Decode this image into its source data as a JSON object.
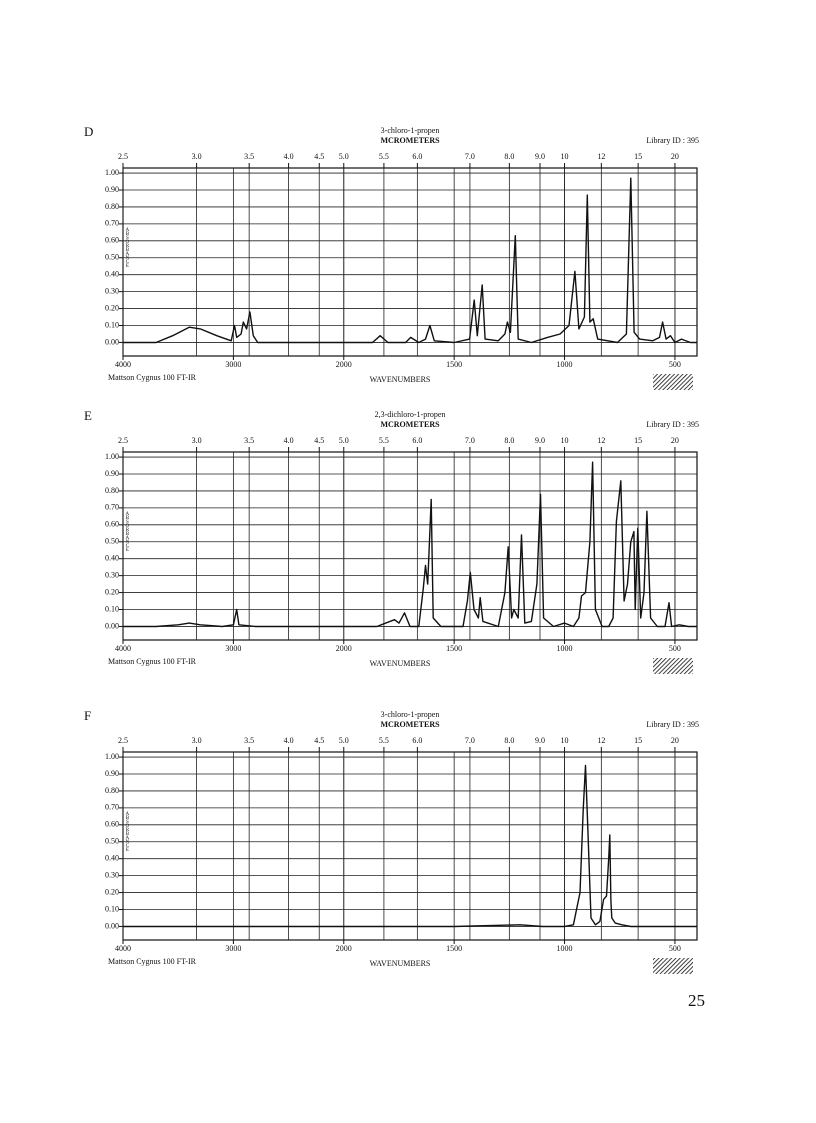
{
  "page_number": "25",
  "chart_data": [
    {
      "type": "line",
      "label": "D",
      "title": "3-chloro-1-propen",
      "x2_label": "MCROMETERS",
      "library_id": "Library ID : 395",
      "instrument": "Mattson Cygnus 100 FT-IR",
      "x_label": "WAVENUMBERS",
      "y_label": "ABSORBANCE",
      "color": "#111111",
      "xscale": "tick-interpolated",
      "grid": true,
      "xlim": [
        4000,
        400
      ],
      "xticks": [
        4000,
        3000,
        2000,
        1500,
        1000,
        500
      ],
      "x2lim": [
        2.5,
        25
      ],
      "x2ticks": [
        2.5,
        {
          "value": 3,
          "label": "3.0"
        },
        3.5,
        {
          "value": 4,
          "label": "4.0"
        },
        4.5,
        {
          "value": 5,
          "label": "5.0"
        },
        5.5,
        {
          "value": 6,
          "label": "6.0"
        },
        {
          "value": 7,
          "label": "7.0"
        },
        {
          "value": 8,
          "label": "8.0"
        },
        {
          "value": 9,
          "label": "9.0"
        },
        10,
        12,
        15,
        20
      ],
      "ylim": [
        -0.08,
        1.03
      ],
      "yticks": [
        {
          "value": 0,
          "label": "0.00"
        },
        {
          "value": 0.1,
          "label": "0.10"
        },
        {
          "value": 0.2,
          "label": "0.20"
        },
        {
          "value": 0.3,
          "label": "0.30"
        },
        {
          "value": 0.4,
          "label": "0.40"
        },
        {
          "value": 0.5,
          "label": "0.50"
        },
        {
          "value": 0.6,
          "label": "0.60"
        },
        {
          "value": 0.7,
          "label": "0.70"
        },
        {
          "value": 0.8,
          "label": "0.80"
        },
        {
          "value": 0.9,
          "label": "0.90"
        },
        {
          "value": 1,
          "label": "1.00"
        }
      ],
      "x": [
        4000,
        3700,
        3550,
        3400,
        3300,
        3150,
        3020,
        2990,
        2970,
        2930,
        2910,
        2880,
        2850,
        2820,
        2780,
        2400,
        2000,
        1870,
        1835,
        1800,
        1720,
        1697,
        1660,
        1630,
        1610,
        1590,
        1500,
        1430,
        1409,
        1395,
        1373,
        1360,
        1300,
        1270,
        1259,
        1245,
        1223,
        1210,
        1150,
        1077,
        1020,
        980,
        953,
        935,
        910,
        897,
        885,
        870,
        850,
        760,
        720,
        700,
        685,
        660,
        600,
        570,
        556,
        540,
        520,
        500,
        470,
        430,
        400
      ],
      "values": [
        0.0,
        0.0,
        0.04,
        0.09,
        0.08,
        0.04,
        0.01,
        0.1,
        0.03,
        0.05,
        0.12,
        0.08,
        0.18,
        0.04,
        0.0,
        0.0,
        0.0,
        0.0,
        0.04,
        0.0,
        0.0,
        0.03,
        0.0,
        0.02,
        0.1,
        0.01,
        0.0,
        0.02,
        0.25,
        0.04,
        0.34,
        0.02,
        0.01,
        0.05,
        0.12,
        0.06,
        0.63,
        0.02,
        0.0,
        0.03,
        0.05,
        0.1,
        0.42,
        0.08,
        0.15,
        0.87,
        0.12,
        0.14,
        0.02,
        0.0,
        0.05,
        0.97,
        0.06,
        0.02,
        0.01,
        0.03,
        0.12,
        0.02,
        0.04,
        0.0,
        0.02,
        0.0,
        0.0
      ]
    },
    {
      "type": "line",
      "label": "E",
      "title": "2,3-dichloro-1-propen",
      "x2_label": "MCROMETERS",
      "library_id": "Library ID : 395",
      "instrument": "Mattson Cygnus 100 FT-IR",
      "x_label": "WAVENUMBERS",
      "y_label": "ABSORBANCE",
      "color": "#111111",
      "xscale": "tick-interpolated",
      "grid": true,
      "xlim": [
        4000,
        400
      ],
      "xticks": [
        4000,
        3000,
        2000,
        1500,
        1000,
        500
      ],
      "x2lim": [
        2.5,
        25
      ],
      "x2ticks": [
        2.5,
        {
          "value": 3,
          "label": "3.0"
        },
        3.5,
        {
          "value": 4,
          "label": "4.0"
        },
        4.5,
        {
          "value": 5,
          "label": "5.0"
        },
        5.5,
        {
          "value": 6,
          "label": "6.0"
        },
        {
          "value": 7,
          "label": "7.0"
        },
        {
          "value": 8,
          "label": "8.0"
        },
        {
          "value": 9,
          "label": "9.0"
        },
        10,
        12,
        15,
        20
      ],
      "ylim": [
        -0.08,
        1.03
      ],
      "yticks": [
        {
          "value": 0,
          "label": "0.00"
        },
        {
          "value": 0.1,
          "label": "0.10"
        },
        {
          "value": 0.2,
          "label": "0.20"
        },
        {
          "value": 0.3,
          "label": "0.30"
        },
        {
          "value": 0.4,
          "label": "0.40"
        },
        {
          "value": 0.5,
          "label": "0.50"
        },
        {
          "value": 0.6,
          "label": "0.60"
        },
        {
          "value": 0.7,
          "label": "0.70"
        },
        {
          "value": 0.8,
          "label": "0.80"
        },
        {
          "value": 0.9,
          "label": "0.90"
        },
        {
          "value": 1,
          "label": "1.00"
        }
      ],
      "x": [
        4000,
        3700,
        3500,
        3400,
        3300,
        3100,
        3000,
        2970,
        2950,
        2800,
        2200,
        2000,
        1850,
        1770,
        1750,
        1725,
        1700,
        1660,
        1640,
        1630,
        1620,
        1604,
        1595,
        1560,
        1460,
        1440,
        1427,
        1410,
        1390,
        1382,
        1370,
        1300,
        1270,
        1255,
        1240,
        1230,
        1210,
        1195,
        1180,
        1150,
        1125,
        1109,
        1095,
        1050,
        1000,
        960,
        935,
        923,
        905,
        885,
        873,
        860,
        830,
        800,
        780,
        765,
        745,
        730,
        715,
        700,
        686,
        680,
        668,
        655,
        640,
        627,
        610,
        580,
        545,
        527,
        515,
        480,
        440,
        400
      ],
      "values": [
        0.0,
        0.0,
        0.01,
        0.02,
        0.01,
        0.0,
        0.01,
        0.1,
        0.01,
        0.0,
        0.0,
        0.0,
        0.0,
        0.04,
        0.02,
        0.08,
        0.0,
        0.0,
        0.22,
        0.36,
        0.25,
        0.75,
        0.05,
        0.0,
        0.0,
        0.15,
        0.32,
        0.1,
        0.05,
        0.17,
        0.03,
        0.0,
        0.2,
        0.47,
        0.05,
        0.1,
        0.05,
        0.54,
        0.02,
        0.03,
        0.25,
        0.78,
        0.05,
        0.0,
        0.02,
        0.0,
        0.05,
        0.18,
        0.2,
        0.5,
        0.97,
        0.1,
        0.0,
        0.0,
        0.05,
        0.62,
        0.86,
        0.15,
        0.25,
        0.5,
        0.56,
        0.1,
        0.58,
        0.05,
        0.2,
        0.68,
        0.05,
        0.0,
        0.0,
        0.14,
        0.0,
        0.01,
        0.0,
        0.0
      ]
    },
    {
      "type": "line",
      "label": "F",
      "title": "3-chloro-1-propen",
      "x2_label": "MCROMETERS",
      "library_id": "Library ID : 395",
      "instrument": "Mattson Cygnus 100 FT-IR",
      "x_label": "WAVENUMBERS",
      "y_label": "ABSORBANCE",
      "color": "#111111",
      "xscale": "tick-interpolated",
      "grid": true,
      "xlim": [
        4000,
        400
      ],
      "xticks": [
        4000,
        3000,
        2000,
        1500,
        1000,
        500
      ],
      "x2lim": [
        2.5,
        25
      ],
      "x2ticks": [
        2.5,
        {
          "value": 3,
          "label": "3.0"
        },
        3.5,
        {
          "value": 4,
          "label": "4.0"
        },
        4.5,
        {
          "value": 5,
          "label": "5.0"
        },
        5.5,
        {
          "value": 6,
          "label": "6.0"
        },
        {
          "value": 7,
          "label": "7.0"
        },
        {
          "value": 8,
          "label": "8.0"
        },
        {
          "value": 9,
          "label": "9.0"
        },
        10,
        12,
        15,
        20
      ],
      "ylim": [
        -0.08,
        1.03
      ],
      "yticks": [
        {
          "value": 0,
          "label": "0.00"
        },
        {
          "value": 0.1,
          "label": "0.10"
        },
        {
          "value": 0.2,
          "label": "0.20"
        },
        {
          "value": 0.3,
          "label": "0.30"
        },
        {
          "value": 0.4,
          "label": "0.40"
        },
        {
          "value": 0.5,
          "label": "0.50"
        },
        {
          "value": 0.6,
          "label": "0.60"
        },
        {
          "value": 0.7,
          "label": "0.70"
        },
        {
          "value": 0.8,
          "label": "0.80"
        },
        {
          "value": 0.9,
          "label": "0.90"
        },
        {
          "value": 1,
          "label": "1.00"
        }
      ],
      "x": [
        4000,
        3000,
        2000,
        1500,
        1200,
        1100,
        1000,
        960,
        930,
        915,
        905,
        895,
        880,
        860,
        840,
        823,
        810,
        800,
        795,
        790,
        786,
        770,
        740,
        700,
        500,
        400
      ],
      "values": [
        0.0,
        0.0,
        0.0,
        0.0,
        0.01,
        0.0,
        0.0,
        0.01,
        0.2,
        0.7,
        0.95,
        0.6,
        0.05,
        0.01,
        0.03,
        0.16,
        0.18,
        0.4,
        0.54,
        0.15,
        0.05,
        0.02,
        0.01,
        0.0,
        0.0,
        0.0
      ]
    }
  ]
}
